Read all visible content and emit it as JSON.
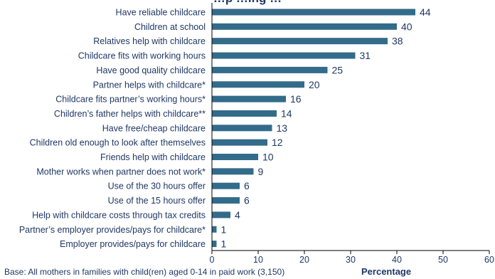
{
  "chart_data": {
    "type": "bar",
    "orientation": "horizontal",
    "title": "…p   …ing …",
    "xlabel": "Percentage",
    "ylabel": "",
    "xlim": [
      0,
      60
    ],
    "x_ticks": [
      "0",
      "10",
      "20",
      "30",
      "40",
      "50",
      "60"
    ],
    "grid": false,
    "legend": "none",
    "bar_color": "#336b8a",
    "text_color": "#1f3864",
    "categories": [
      "Have reliable childcare",
      "Children at school",
      "Relatives help with childcare",
      "Childcare fits with working hours",
      "Have good quality childcare",
      "Partner helps with childcare*",
      "Childcare fits partner’s working hours*",
      "Children’s father helps with childcare**",
      "Have free/cheap childcare",
      "Children old enough to look after themselves",
      "Friends help with childcare",
      "Mother works when partner does not work*",
      "Use of the 30 hours offer",
      "Use of the 15 hours offer",
      "Help with childcare costs through tax credits",
      "Partner’s employer provides/pays for childcare*",
      "Employer provides/pays for childcare"
    ],
    "values": [
      44,
      40,
      38,
      31,
      25,
      20,
      16,
      14,
      13,
      12,
      10,
      9,
      6,
      6,
      4,
      1,
      1
    ],
    "footnote": "Base: All mothers in families with child(ren) aged 0-14 in paid work (3,150)"
  }
}
